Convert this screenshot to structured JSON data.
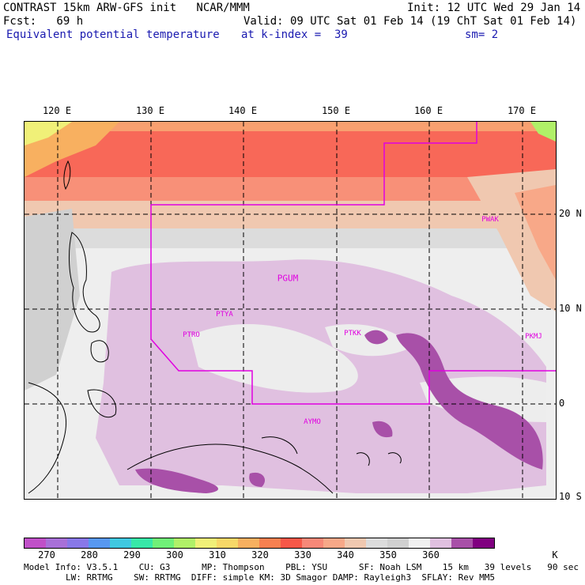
{
  "header": {
    "line1_left": "CONTRAST 15km ARW-GFS init   NCAR/MMM",
    "line1_right": "Init: 12 UTC Wed 29 Jan 14",
    "line2_left": "Fcst:   69 h",
    "line2_right": "Valid: 09 UTC Sat 01 Feb 14 (19 ChT Sat 01 Feb 14)",
    "line3_left": "Equivalent potential temperature",
    "line3_mid": "at k-index =  39",
    "line3_right": "sm= 2"
  },
  "map": {
    "lon_labels": [
      "120 E",
      "130 E",
      "140 E",
      "150 E",
      "160 E",
      "170 E"
    ],
    "lat_labels": [
      "20 N",
      "10 N",
      "0",
      "10 S"
    ],
    "stations": [
      "PWAK",
      "PGUM",
      "PTYA",
      "PTRO",
      "PTKK",
      "PKMJ",
      "AYMO"
    ]
  },
  "colorbar": {
    "colors": [
      "#c050c8",
      "#a870d8",
      "#8878e8",
      "#5898f0",
      "#40c8e0",
      "#38e8a8",
      "#70f078",
      "#b0f068",
      "#f0f078",
      "#f8d868",
      "#f8b060",
      "#f88050",
      "#f85848",
      "#f88878",
      "#f8a888",
      "#f0c8b0",
      "#dcdcdc",
      "#d0d0d0",
      "#f0f0f0",
      "#e0c0e0",
      "#a850a8",
      "#800080"
    ],
    "labels": [
      "270",
      "280",
      "290",
      "300",
      "310",
      "320",
      "330",
      "340",
      "350",
      "360"
    ],
    "unit": "K"
  },
  "footer": {
    "line1": "Model Info: V3.5.1    CU: G3      MP: Thompson    PBL: YSU      SF: Noah LSM    15 km   39 levels   90 sec",
    "line2": "        LW: RRTMG    SW: RRTMG  DIFF: simple KM: 3D Smagor DAMP: Rayleigh3  SFLAY: Rev MM5"
  }
}
